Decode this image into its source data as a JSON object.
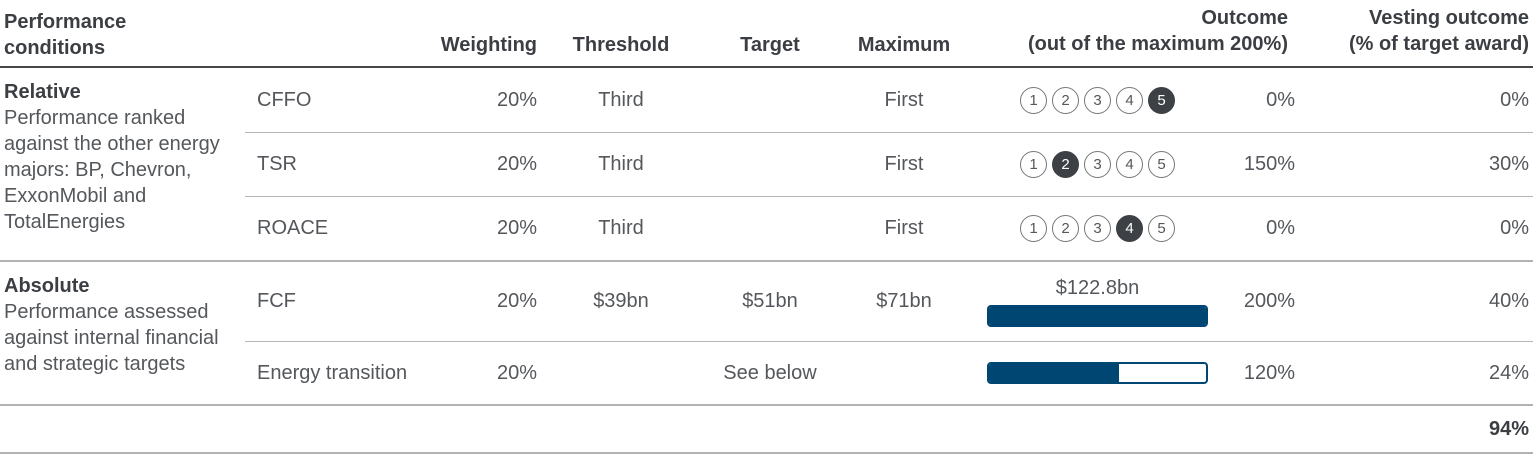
{
  "colors": {
    "bar_fill": "#004672",
    "bar_empty": "#ffffff",
    "rank_filled_bg": "#3d4145",
    "rank_filled_text": "#ffffff",
    "heading_text": "#3b3e42",
    "body_text": "#54575b",
    "divider_light": "#b2b2b2",
    "divider_dark": "#474747"
  },
  "header": {
    "performance_conditions": "Performance conditions",
    "weighting": "Weighting",
    "threshold": "Threshold",
    "target": "Target",
    "maximum": "Maximum",
    "outcome_line1": "Outcome",
    "outcome_line2": "(out of the maximum 200%)",
    "vesting_line1": "Vesting outcome",
    "vesting_line2": "(% of target award)"
  },
  "rank_scale": [
    "1",
    "2",
    "3",
    "4",
    "5"
  ],
  "sections": [
    {
      "title": "Relative",
      "description": "Performance ranked against the other energy majors: BP, Chevron, ExxonMobil and TotalEnergies",
      "rows": [
        {
          "metric": "CFFO",
          "weighting": "20%",
          "threshold": "Third",
          "target": "",
          "maximum": "First",
          "rank_selected": 5,
          "outcome": "0%",
          "vesting": "0%"
        },
        {
          "metric": "TSR",
          "weighting": "20%",
          "threshold": "Third",
          "target": "",
          "maximum": "First",
          "rank_selected": 2,
          "outcome": "150%",
          "vesting": "30%"
        },
        {
          "metric": "ROACE",
          "weighting": "20%",
          "threshold": "Third",
          "target": "",
          "maximum": "First",
          "rank_selected": 4,
          "outcome": "0%",
          "vesting": "0%"
        }
      ]
    },
    {
      "title": "Absolute",
      "description": "Performance assessed against internal financial and strategic targets",
      "rows": [
        {
          "metric": "FCF",
          "weighting": "20%",
          "threshold": "$39bn",
          "target": "$51bn",
          "maximum": "$71bn",
          "bar_label": "$122.8bn",
          "bar_fill_pct": 100,
          "outcome": "200%",
          "vesting": "40%"
        },
        {
          "metric": "Energy transition",
          "weighting": "20%",
          "threshold": "",
          "target": "See below",
          "maximum": "",
          "bar_label": "",
          "bar_fill_pct": 60,
          "outcome": "120%",
          "vesting": "24%"
        }
      ]
    }
  ],
  "total": {
    "vesting_outcome": "94%"
  }
}
